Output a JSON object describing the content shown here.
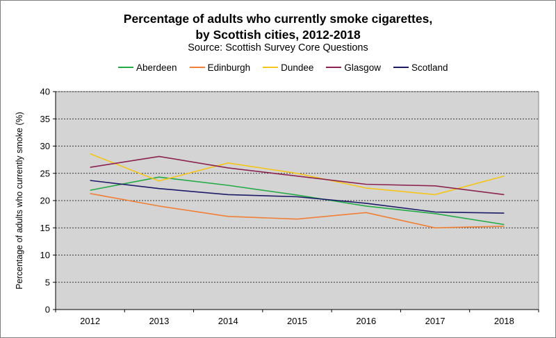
{
  "chart_data": {
    "type": "line",
    "title_line1": "Percentage of adults who currently smoke cigarettes,",
    "title_line2": "by Scottish cities, 2012-2018",
    "subtitle": "Source: Scottish Survey Core Questions",
    "ylabel": "Percentage of adults who currently  smoke (%)",
    "xlabel": "",
    "categories": [
      "2012",
      "2013",
      "2014",
      "2015",
      "2016",
      "2017",
      "2018"
    ],
    "ylim": [
      0,
      40
    ],
    "yticks": [
      0,
      5,
      10,
      15,
      20,
      25,
      30,
      35,
      40
    ],
    "grid": true,
    "legend_position": "top",
    "plot_background": "#d4d4d4",
    "series": [
      {
        "name": "Aberdeen",
        "color": "#22aa44",
        "values": [
          21.9,
          24.3,
          22.8,
          21.0,
          19.0,
          17.6,
          15.6
        ]
      },
      {
        "name": "Edinburgh",
        "color": "#f07f35",
        "values": [
          21.3,
          19.0,
          17.1,
          16.6,
          17.8,
          15.0,
          15.3
        ]
      },
      {
        "name": "Dundee",
        "color": "#f5c518",
        "values": [
          28.6,
          23.6,
          26.9,
          25.0,
          22.3,
          21.1,
          24.5
        ]
      },
      {
        "name": "Glasgow",
        "color": "#8b2252",
        "values": [
          26.1,
          28.1,
          26.0,
          24.5,
          23.0,
          22.7,
          21.1
        ]
      },
      {
        "name": "Scotland",
        "color": "#1a1a66",
        "values": [
          23.7,
          22.2,
          21.1,
          20.7,
          19.5,
          17.9,
          17.7
        ]
      }
    ]
  }
}
